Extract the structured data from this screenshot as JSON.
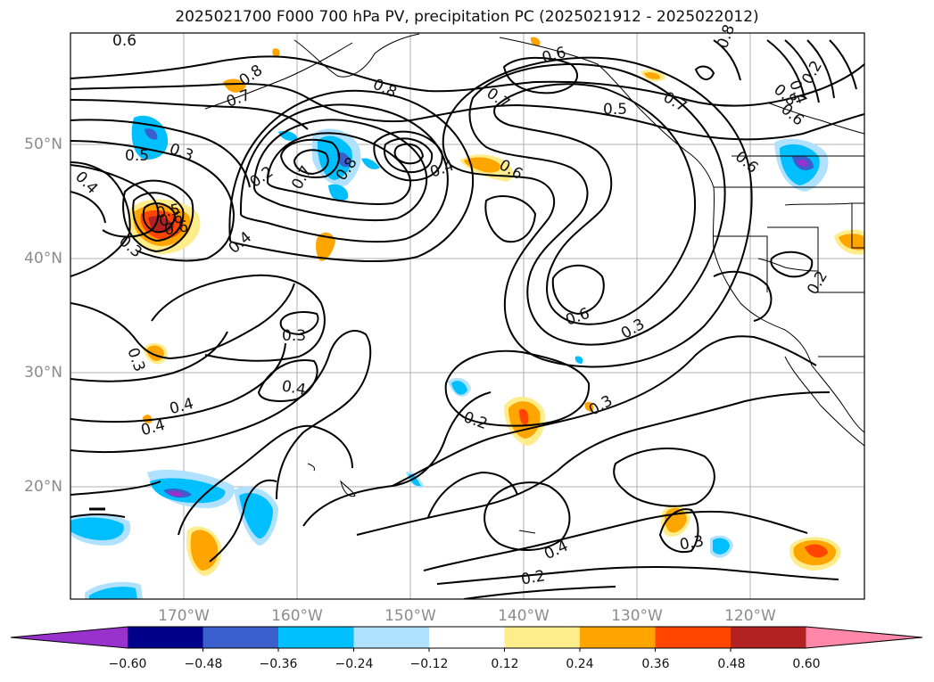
{
  "title": "2025021700 F000 700 hPa PV, precipitation PC (2025021912 - 2025022012)",
  "lat_labels": [
    "50°N",
    "40°N",
    "30°N",
    "20°N"
  ],
  "lon_labels": [
    "170°W",
    "160°W",
    "150°W",
    "140°W",
    "130°W",
    "120°W"
  ],
  "colorbar": {
    "ticks": [
      "−0.60",
      "−0.48",
      "−0.36",
      "−0.24",
      "−0.12",
      "0.12",
      "0.24",
      "0.36",
      "0.48",
      "0.60"
    ],
    "colors": [
      "#9932cc",
      "#00008b",
      "#3a5fcd",
      "#00bfff",
      "#b0e2ff",
      "#ffffff",
      "#ffec8b",
      "#ffa500",
      "#ff4500",
      "#b22222",
      "#ff88aa"
    ]
  },
  "contour_labels": [
    "0.6",
    "0.8",
    "0.7",
    "0.8",
    "0.6",
    "0.7",
    "0.5",
    "0.7",
    "0.6",
    "0.5",
    "0.2",
    "0.4",
    "0.6",
    "0.5",
    "0.3",
    "0.4",
    "0.2",
    "0.7",
    "0.8",
    "0.4",
    "0.6",
    "0.8",
    "0.6",
    "0.3",
    "0.4",
    "0.6",
    "0.3",
    "0.2",
    "0.3",
    "0.3",
    "0.4",
    "0.4",
    "0.4",
    "0.2",
    "0.3",
    "0.4",
    "0.3",
    "0.2",
    "0.8",
    "0.6"
  ]
}
